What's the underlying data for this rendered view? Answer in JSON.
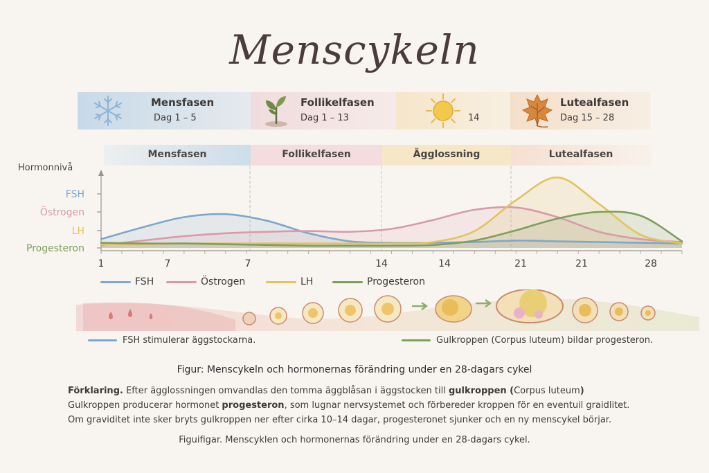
{
  "title": "Menscykeln",
  "phase_cards": [
    {
      "name": "Mensfasen",
      "days": "Dag 1 – 5",
      "icon": "snowflake-icon"
    },
    {
      "name": "Follikelfasen",
      "days": "Dag 1 – 13",
      "icon": "sprout-icon"
    },
    {
      "name": "",
      "days": "14",
      "icon": "sun-icon"
    },
    {
      "name": "Lutealfasen",
      "days": "Dag 15 – 28",
      "icon": "leaf-icon"
    }
  ],
  "phase_bands": [
    "Mensfasen",
    "Follikelfasen",
    "Ägglossning",
    "Lutealfasen"
  ],
  "colors": {
    "fsh": "#7ea6cc",
    "ostrogen": "#d99aa8",
    "lh": "#e2c35e",
    "progesteron": "#7f9e5c"
  },
  "chart_data": {
    "type": "line",
    "ylabel": "Hormonnivå",
    "ytick_labels": [
      "FSH",
      "Östrogen",
      "LH",
      "Progesteron"
    ],
    "xtick_labels": [
      "1",
      "7",
      "7",
      "14",
      "14",
      "21",
      "21",
      "28"
    ],
    "x": [
      0,
      2,
      4,
      6,
      8,
      10,
      12,
      14,
      16,
      18,
      20,
      22,
      24,
      26,
      28
    ],
    "ylim": [
      0,
      10
    ],
    "series": [
      {
        "name": "FSH",
        "values": [
          1.2,
          2.8,
          4.2,
          4.6,
          3.7,
          2.0,
          0.9,
          0.7,
          0.7,
          0.8,
          1.0,
          0.9,
          0.8,
          0.7,
          0.6
        ]
      },
      {
        "name": "Östrogen",
        "values": [
          0.4,
          1.0,
          1.6,
          2.0,
          2.2,
          2.3,
          2.2,
          2.6,
          3.8,
          5.2,
          5.5,
          4.2,
          2.2,
          1.2,
          0.8
        ]
      },
      {
        "name": "LH",
        "values": [
          0.5,
          0.5,
          0.6,
          0.6,
          0.6,
          0.6,
          0.6,
          0.6,
          0.8,
          2.3,
          6.5,
          9.6,
          6.0,
          1.8,
          0.6
        ]
      },
      {
        "name": "Progesteron",
        "values": [
          0.7,
          0.6,
          0.6,
          0.5,
          0.4,
          0.3,
          0.3,
          0.3,
          0.4,
          1.0,
          2.4,
          4.0,
          4.9,
          4.4,
          0.9
        ]
      }
    ]
  },
  "legend": [
    "FSH",
    "Östrogen",
    "LH",
    "Progesteron"
  ],
  "notes": {
    "fsh": "FSH stimulerar äggstockarna.",
    "progesteron": "Gulkroppen (Corpus luteum) bildar progesteron."
  },
  "figure_caption": "Figur: Menscykeln och hormonernas förändring under en 28-dagars cykel",
  "explanation": {
    "line1_bold": "Förklaring.",
    "line1_a": " Efter ägglossningen omvandlas den tomma äggblåsan i äggstocken till ",
    "line1_b_bold": "gulkroppen (",
    "line1_c": "Corpus luteum",
    "line1_d_bold": ")",
    "line2_a": "Gulkroppen producerar hormonet ",
    "line2_b_bold": "progesteron",
    "line2_c": ", som lugnar nervsystemet och förbereder kroppen för en eventuil graidlitet.",
    "line3": "Om graviditet inte sker bryts gulkroppen ner efter cirka 10–14 dagar, progesteronet sjunker och en ny menscykel börjar."
  },
  "figure_caption_2": "Figuifigar. Menscyklen och hormonernas förändring under en 28-dagars cykel."
}
